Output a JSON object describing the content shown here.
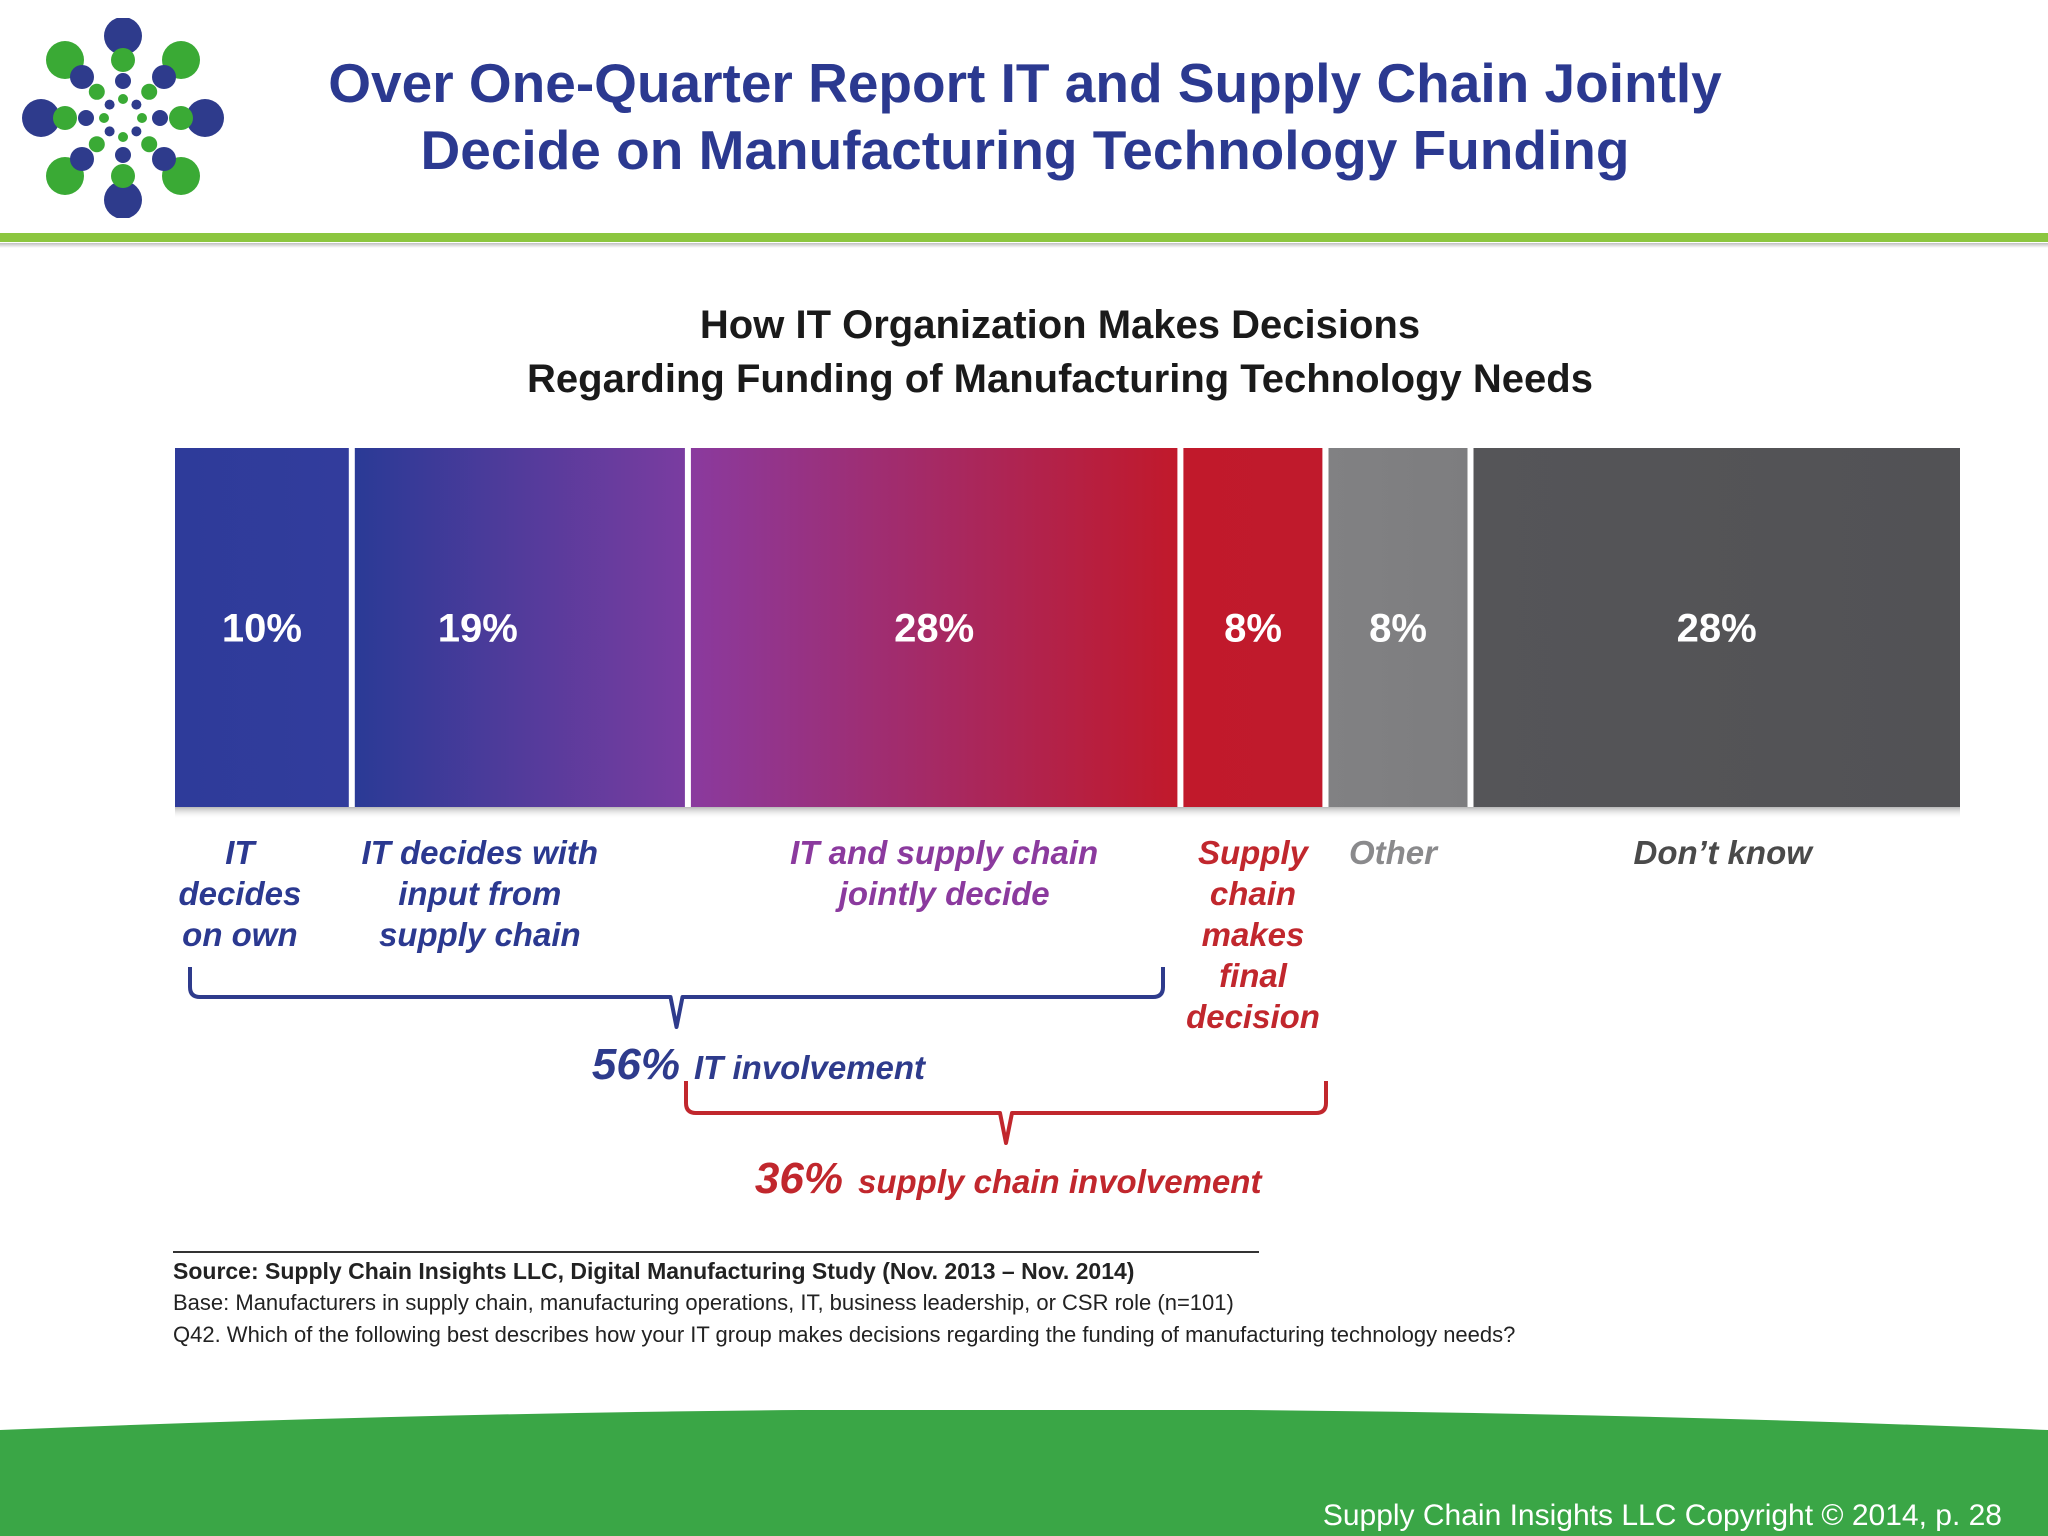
{
  "header": {
    "title_line1": "Over One-Quarter Report IT and Supply Chain Jointly",
    "title_line2": "Decide on Manufacturing Technology Funding"
  },
  "chart_data": {
    "type": "bar",
    "stacked": true,
    "orientation": "horizontal",
    "title_line1": "How IT Organization Makes Decisions",
    "title_line2": "Regarding Funding of Manufacturing Technology Needs",
    "unit": "%",
    "categories": [
      "IT decides on own",
      "IT decides with input from supply chain",
      "IT and supply chain jointly decide",
      "Supply chain makes final decision",
      "Other",
      "Don’t know"
    ],
    "segments": [
      {
        "value": 10,
        "label": "10%",
        "desc_lines": [
          "IT",
          "decides",
          "on own"
        ],
        "color": "#2e3b9a"
      },
      {
        "value": 19,
        "label": "19%",
        "desc_lines": [
          "IT decides with",
          "input from",
          "supply chain"
        ],
        "color": "#3c3a9b"
      },
      {
        "value": 28,
        "label": "28%",
        "desc_lines": [
          "IT and supply chain",
          "jointly decide"
        ],
        "color": "#8a3a9e"
      },
      {
        "value": 8,
        "label": "8%",
        "desc_lines": [
          "Supply",
          "chain",
          "makes",
          "final",
          "decision"
        ],
        "color": "#c1192b"
      },
      {
        "value": 8,
        "label": "8%",
        "desc_lines": [
          "Other"
        ],
        "color": "#818183"
      },
      {
        "value": 28,
        "label": "28%",
        "desc_lines": [
          "Don’t know"
        ],
        "color": "#555558"
      }
    ],
    "groups": [
      {
        "value_label": "56%",
        "text": "IT involvement",
        "members": [
          0,
          1,
          2
        ],
        "color": "#2e3b8c"
      },
      {
        "value_label": "36%",
        "text": "supply chain involvement",
        "members": [
          2,
          3
        ],
        "color": "#c1272d"
      }
    ],
    "desc_colors": [
      "#2b3990",
      "#2b3990",
      "#8b3a9e",
      "#c1272d",
      "#8a8a8c",
      "#4a4a4a"
    ]
  },
  "source": {
    "source_line": "Source:  Supply Chain Insights LLC, Digital Manufacturing Study (Nov. 2013 – Nov. 2014)",
    "base_line": "Base: Manufacturers in supply chain, manufacturing operations, IT, business leadership, or CSR role (n=101)",
    "question_line": "Q42. Which of the following best describes how your IT group makes decisions regarding the funding of manufacturing technology needs?"
  },
  "footer": {
    "text": "Supply Chain Insights LLC Copyright © 2014, p. 28"
  },
  "colors": {
    "title_blue": "#2b3990",
    "accent_green": "#8cc63f",
    "footer_green": "#3aa646",
    "logo_blue": "#2e3b8c",
    "logo_green": "#3aaa35"
  }
}
